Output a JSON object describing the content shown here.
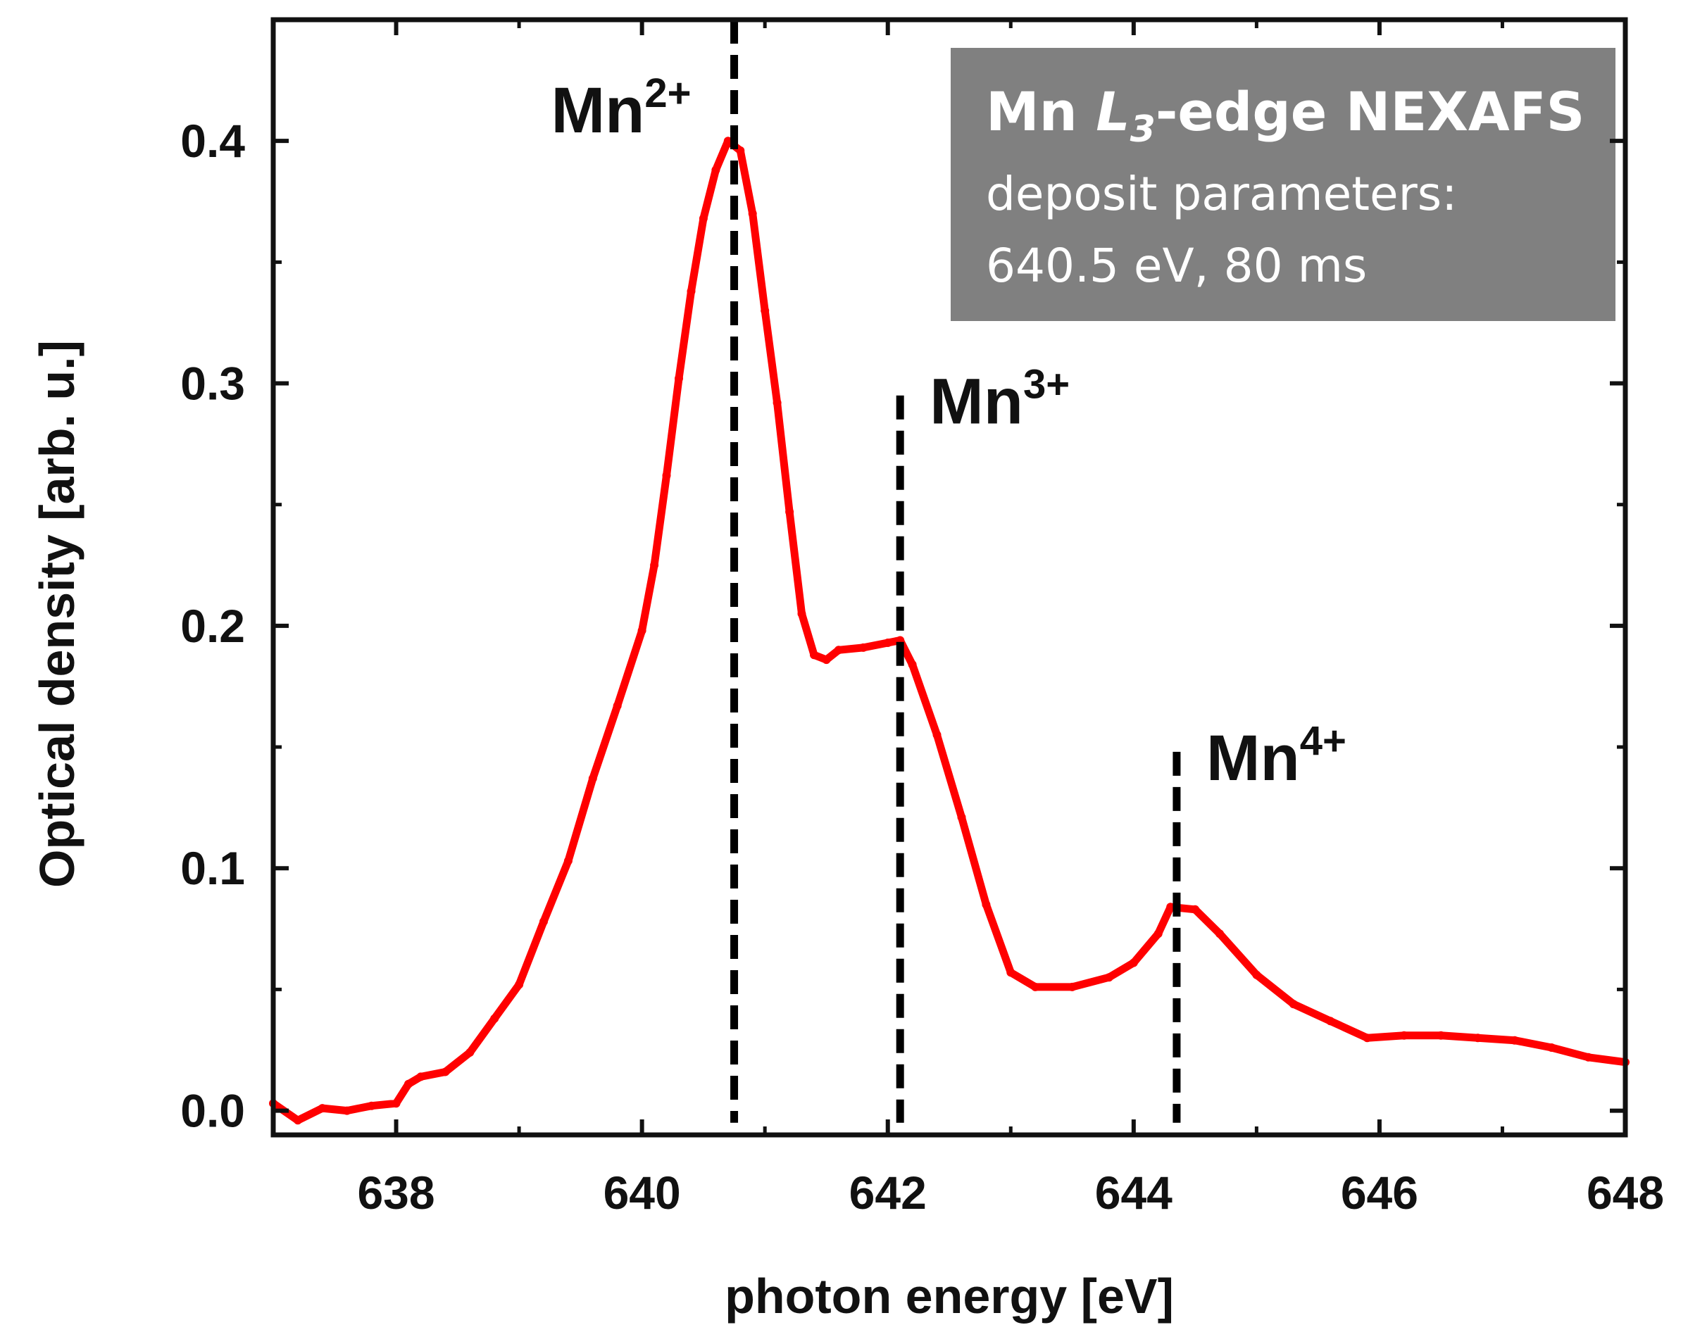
{
  "chart_data": {
    "type": "line",
    "title": "",
    "xlabel": "photon energy [eV]",
    "ylabel": "Optical density [arb. u.]",
    "xlim": [
      637,
      648
    ],
    "ylim": [
      -0.01,
      0.45
    ],
    "x_ticks": [
      638,
      640,
      642,
      644,
      646,
      648
    ],
    "x_tick_labels": [
      "638",
      "640",
      "642",
      "644",
      "646",
      "648"
    ],
    "y_ticks": [
      0.0,
      0.1,
      0.2,
      0.3,
      0.4
    ],
    "y_tick_labels": [
      "0.0",
      "0.1",
      "0.2",
      "0.3",
      "0.4"
    ],
    "grid": false,
    "series": [
      {
        "name": "Mn L3-edge NEXAFS",
        "color": "#ff0000",
        "x": [
          637.0,
          637.2,
          637.4,
          637.6,
          637.8,
          638.0,
          638.1,
          638.2,
          638.4,
          638.6,
          638.8,
          639.0,
          639.2,
          639.4,
          639.6,
          639.8,
          640.0,
          640.1,
          640.2,
          640.3,
          640.4,
          640.5,
          640.6,
          640.7,
          640.8,
          640.9,
          641.0,
          641.1,
          641.2,
          641.3,
          641.4,
          641.5,
          641.6,
          641.8,
          642.0,
          642.1,
          642.2,
          642.4,
          642.6,
          642.8,
          643.0,
          643.2,
          643.5,
          643.8,
          644.0,
          644.2,
          644.3,
          644.5,
          644.7,
          645.0,
          645.3,
          645.6,
          645.9,
          646.2,
          646.5,
          646.8,
          647.1,
          647.4,
          647.7,
          648.0
        ],
        "y": [
          0.003,
          -0.004,
          0.001,
          0.0,
          0.002,
          0.003,
          0.011,
          0.014,
          0.016,
          0.024,
          0.038,
          0.052,
          0.078,
          0.103,
          0.137,
          0.167,
          0.198,
          0.225,
          0.262,
          0.302,
          0.338,
          0.368,
          0.388,
          0.4,
          0.396,
          0.37,
          0.33,
          0.292,
          0.247,
          0.205,
          0.188,
          0.186,
          0.19,
          0.191,
          0.193,
          0.194,
          0.184,
          0.155,
          0.121,
          0.085,
          0.057,
          0.051,
          0.051,
          0.055,
          0.061,
          0.073,
          0.084,
          0.083,
          0.073,
          0.056,
          0.044,
          0.037,
          0.03,
          0.031,
          0.031,
          0.03,
          0.029,
          0.026,
          0.022,
          0.02
        ]
      }
    ],
    "annotations": [
      {
        "x": 640.75,
        "y_top": 0.45,
        "label": "Mn",
        "charge": "2+"
      },
      {
        "x": 642.1,
        "y_top": 0.295,
        "label": "Mn",
        "charge": "3+"
      },
      {
        "x": 644.35,
        "y_top": 0.148,
        "label": "Mn",
        "charge": "4+"
      }
    ],
    "textbox": {
      "title_prefix": "Mn ",
      "title_edge": "L",
      "title_edge_sub": "3",
      "title_suffix": "-edge NEXAFS",
      "line2": "deposit parameters:",
      "line3": "640.5 eV, 80 ms",
      "background": "#808080"
    }
  }
}
